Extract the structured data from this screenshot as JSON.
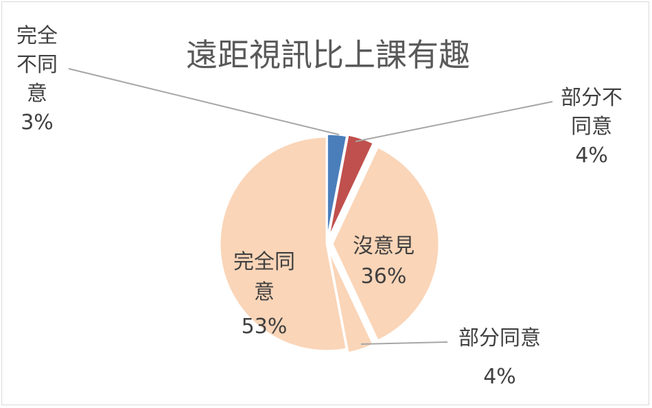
{
  "chart_data": {
    "type": "pie",
    "title": "遠距視訊比上課有趣",
    "categories": [
      "完全不同意",
      "部分不同意",
      "沒意見",
      "部分同意",
      "完全同意"
    ],
    "values": [
      3,
      4,
      36,
      4,
      53
    ],
    "value_labels": [
      "3%",
      "4%",
      "36%",
      "4%",
      "53%"
    ],
    "label_lines": [
      [
        "完全",
        "不同",
        "意"
      ],
      [
        "部分不",
        "同意"
      ],
      [
        "沒意見"
      ],
      [
        "部分同意"
      ],
      [
        "完全同",
        "意"
      ]
    ],
    "colors": [
      "#4a7ebb",
      "#c0504d",
      "#fad5b8",
      "#fad5b8",
      "#fad5b8"
    ],
    "legend": "none",
    "data_labels": "category-and-percent"
  }
}
